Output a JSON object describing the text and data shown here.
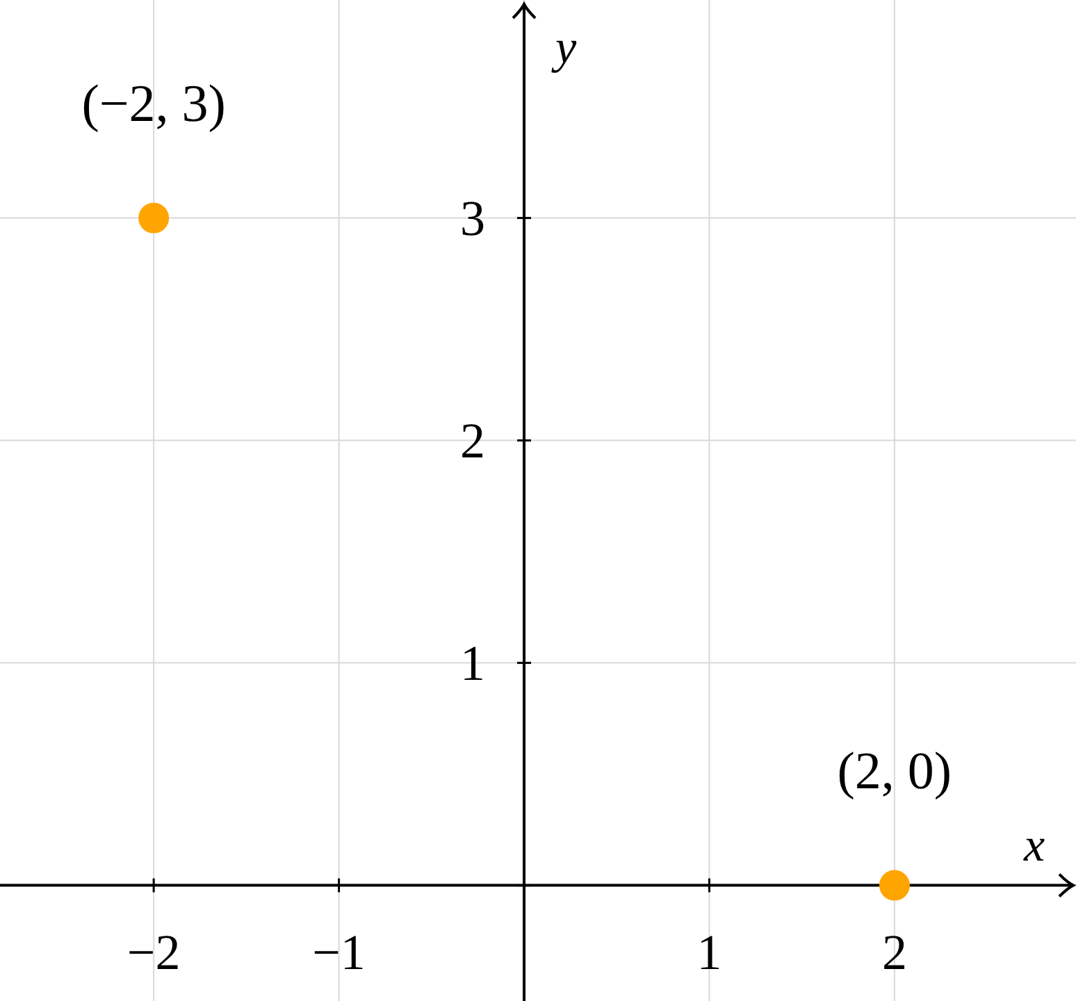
{
  "chart_data": {
    "type": "scatter",
    "xlabel": "x",
    "ylabel": "y",
    "x": [
      -2,
      2
    ],
    "series": [
      {
        "color": "#ffa500",
        "values": [
          3,
          0
        ]
      }
    ],
    "xlim": [
      -2.83,
      2.98
    ],
    "ylim": [
      -0.52,
      3.98
    ],
    "xticks": [
      -2,
      -1,
      {
        "value": 0,
        "label": null
      },
      1,
      2
    ],
    "yticks": [
      {
        "value": 0,
        "label": null
      },
      1,
      2,
      3
    ],
    "grid": true,
    "marker": "circle",
    "annotations": [
      {
        "text": "(−2, 3)",
        "x": -2,
        "y": 3
      },
      {
        "text": "(2, 0)",
        "x": 2,
        "y": 0
      }
    ]
  }
}
